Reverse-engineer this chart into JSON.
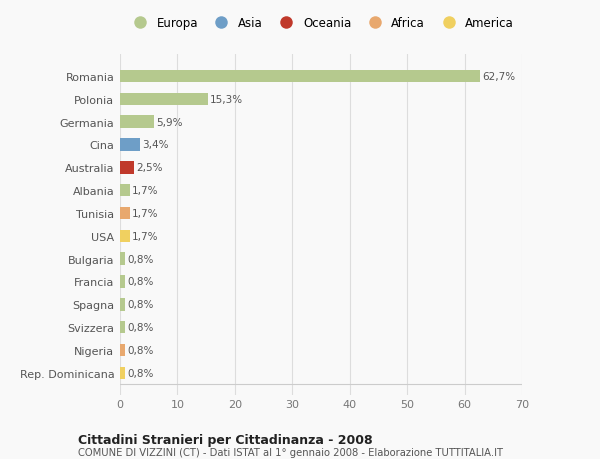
{
  "countries": [
    "Romania",
    "Polonia",
    "Germania",
    "Cina",
    "Australia",
    "Albania",
    "Tunisia",
    "USA",
    "Bulgaria",
    "Francia",
    "Spagna",
    "Svizzera",
    "Nigeria",
    "Rep. Dominicana"
  ],
  "values": [
    62.7,
    15.3,
    5.9,
    3.4,
    2.5,
    1.7,
    1.7,
    1.7,
    0.8,
    0.8,
    0.8,
    0.8,
    0.8,
    0.8
  ],
  "labels": [
    "62,7%",
    "15,3%",
    "5,9%",
    "3,4%",
    "2,5%",
    "1,7%",
    "1,7%",
    "1,7%",
    "0,8%",
    "0,8%",
    "0,8%",
    "0,8%",
    "0,8%",
    "0,8%"
  ],
  "continents": [
    "Europa",
    "Europa",
    "Europa",
    "Asia",
    "Oceania",
    "Europa",
    "Africa",
    "America",
    "Europa",
    "Europa",
    "Europa",
    "Europa",
    "Africa",
    "America"
  ],
  "bar_colors": [
    "#b5c98e",
    "#b5c98e",
    "#b5c98e",
    "#6e9ec7",
    "#c0392b",
    "#b5c98e",
    "#e8a86e",
    "#f0d060",
    "#b5c98e",
    "#b5c98e",
    "#b5c98e",
    "#b5c98e",
    "#e8a86e",
    "#f0d060"
  ],
  "legend_labels": [
    "Europa",
    "Asia",
    "Oceania",
    "Africa",
    "America"
  ],
  "legend_colors": [
    "#b5c98e",
    "#6e9ec7",
    "#c0392b",
    "#e8a86e",
    "#f0d060"
  ],
  "xlim": [
    0,
    70
  ],
  "xticks": [
    0,
    10,
    20,
    30,
    40,
    50,
    60,
    70
  ],
  "title": "Cittadini Stranieri per Cittadinanza - 2008",
  "subtitle": "COMUNE DI VIZZINI (CT) - Dati ISTAT al 1° gennaio 2008 - Elaborazione TUTTITALIA.IT",
  "bg_color": "#f9f9f9",
  "grid_color": "#dddddd",
  "bar_height": 0.55
}
